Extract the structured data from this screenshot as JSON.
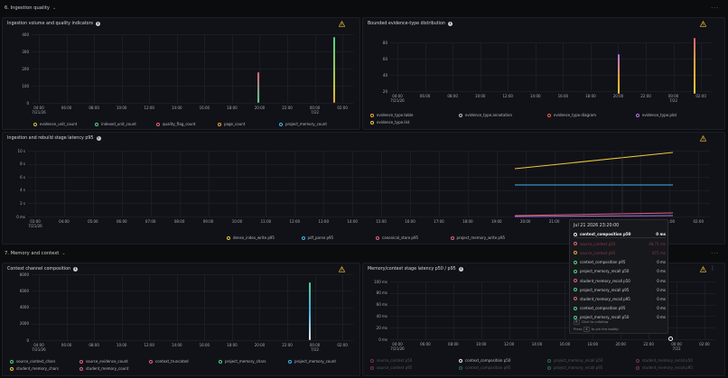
{
  "rows": {
    "ingestion": "6. Ingestion quality",
    "memory": "7. Memory and context"
  },
  "panels": {
    "volume": {
      "title": "Ingestion volume and quality indicators",
      "yticks": [
        "400",
        "300",
        "200",
        "100",
        "0"
      ],
      "xticks": [
        "04:00\n7/21/26",
        "06:00",
        "08:00",
        "10:00",
        "12:00",
        "14:00",
        "16:00",
        "18:00",
        "20:00",
        "22:00",
        "00:00\n7/22",
        "02:00"
      ],
      "legend": [
        {
          "label": "evidence_unit_count",
          "color": "#c8c63a"
        },
        {
          "label": "indexed_unit_count",
          "color": "#4ecf8a"
        },
        {
          "label": "quality_flag_count",
          "color": "#e0607a"
        },
        {
          "label": "page_count",
          "color": "#e8a23a"
        },
        {
          "label": "project_memory_count",
          "color": "#3fb3e6"
        }
      ]
    },
    "bounded": {
      "title": "Bounded evidence-type distribution",
      "yticks": [
        "80",
        "60",
        "40",
        "20"
      ],
      "xticks": [
        "04:00\n7/21/26",
        "06:00",
        "08:00",
        "10:00",
        "12:00",
        "14:00",
        "16:00",
        "18:00",
        "20:00",
        "22:00",
        "00:00\n7/22",
        "02:00"
      ],
      "legend": [
        {
          "label": "evidence_type.table",
          "color": "#e8a23a"
        },
        {
          "label": "evidence_type.annotation",
          "color": "#b8bac0"
        },
        {
          "label": "evidence_type.diagram",
          "color": "#e0604a"
        },
        {
          "label": "evidence_type.plot",
          "color": "#b070e0"
        },
        {
          "label": "evidence_type.list",
          "color": "#e8c83a"
        }
      ]
    },
    "latency": {
      "title": "Ingestion and rebuild stage latency p95",
      "yticks": [
        "10 s",
        "8 s",
        "6 s",
        "4 s",
        "2 s",
        "0 ms"
      ],
      "xticks": [
        "03:00\n7/21/26",
        "04:00",
        "05:00",
        "06:00",
        "07:00",
        "08:00",
        "09:00",
        "10:00",
        "11:00",
        "12:00",
        "13:00",
        "14:00",
        "15:00",
        "16:00",
        "17:00",
        "18:00",
        "19:00",
        "20:00",
        "21:00",
        "22:00",
        "23:00",
        "00:00",
        "01:00",
        "02:00"
      ],
      "legend": [
        {
          "label": "dense_index_write p95",
          "color": "#e8c83a"
        },
        {
          "label": "pdf_parse p95",
          "color": "#3fb3e6"
        },
        {
          "label": "canonical_store p95",
          "color": "#e0607a"
        },
        {
          "label": "project_memory_write p95",
          "color": "#e0607a"
        }
      ]
    },
    "context": {
      "title": "Context channel composition",
      "yticks": [
        "8000",
        "6000",
        "4000",
        "2000",
        "0"
      ],
      "xticks": [
        "04:00\n7/21/26",
        "06:00",
        "08:00",
        "10:00",
        "12:00",
        "14:00",
        "16:00",
        "18:00",
        "20:00",
        "22:00",
        "00:00\n7/22",
        "02:00"
      ],
      "legend": [
        {
          "label": "source_context_chars",
          "color": "#4ecf8a"
        },
        {
          "label": "source_evidence_count",
          "color": "#e0607a"
        },
        {
          "label": "context_truncated",
          "color": "#e0607a"
        },
        {
          "label": "project_memory_chars",
          "color": "#4ecf8a"
        },
        {
          "label": "project_memory_count",
          "color": "#3fb3e6"
        },
        {
          "label": "student_memory_chars",
          "color": "#e8c83a"
        },
        {
          "label": "student_memory_count",
          "color": "#e0607a"
        }
      ]
    },
    "memlatency": {
      "title": "Memory/context stage latency p50 / p95",
      "yticks": [
        "100 ms",
        "80 ms",
        "60 ms",
        "40 ms",
        "20 ms",
        "0 ms"
      ],
      "xticks": [
        "04:00\n7/21/26",
        "06:00",
        "08:00",
        "10:00",
        "12:00",
        "14:00",
        "16:00",
        "18:00",
        "20:00",
        "22:00",
        "00:00\n7/22",
        "02:00"
      ],
      "legend": [
        {
          "label": "source_context p50",
          "color": "#e0607a",
          "dim": true
        },
        {
          "label": "context_composition p50",
          "color": "#e8e8e8",
          "dim": false
        },
        {
          "label": "project_memory_recall p50",
          "color": "#4ecf8a",
          "dim": true
        },
        {
          "label": "student_memory_recall p50",
          "color": "#e0607a",
          "dim": true
        },
        {
          "label": "source_context p95",
          "color": "#e0607a",
          "dim": true
        },
        {
          "label": "context_composition p95",
          "color": "#4ecf8a",
          "dim": true
        },
        {
          "label": "project_memory_recall p95",
          "color": "#4ecf8a",
          "dim": true
        },
        {
          "label": "student_memory_recall p95",
          "color": "#e0607a",
          "dim": true
        }
      ]
    }
  },
  "tooltip": {
    "date": "Jul 21 2026 23:20:00",
    "rows": [
      {
        "label": "context_composition p50",
        "value": "0 ms",
        "color": "#e8e8e8",
        "hl": true
      },
      {
        "label": "source_context p50",
        "value": "48.71 ms",
        "color": "#e0607a",
        "dim": true
      },
      {
        "label": "source_context p95",
        "value": "871 ms",
        "color": "#e8a23a",
        "dim": true
      },
      {
        "label": "context_composition p95",
        "value": "0 ms",
        "color": "#4ecf8a"
      },
      {
        "label": "project_memory_recall p50",
        "value": "0 ms",
        "color": "#4ecf8a"
      },
      {
        "label": "student_memory_recall p50",
        "value": "0 ms",
        "color": "#e0607a"
      },
      {
        "label": "project_memory_recall p95",
        "value": "0 ms",
        "color": "#4ecf8a"
      },
      {
        "label": "student_memory_recall p95",
        "value": "0 ms",
        "color": "#e0607a"
      },
      {
        "label": "context_composition p95",
        "value": "0 ms",
        "color": "#4ecf8a"
      },
      {
        "label": "project_memory_recall p50",
        "value": "0 ms",
        "color": "#4ecf8a"
      }
    ],
    "hint_click": "Click to unfollow",
    "hint_press": "Press",
    "hint_key": "K",
    "hint_pin": "to pin the tooltip"
  }
}
